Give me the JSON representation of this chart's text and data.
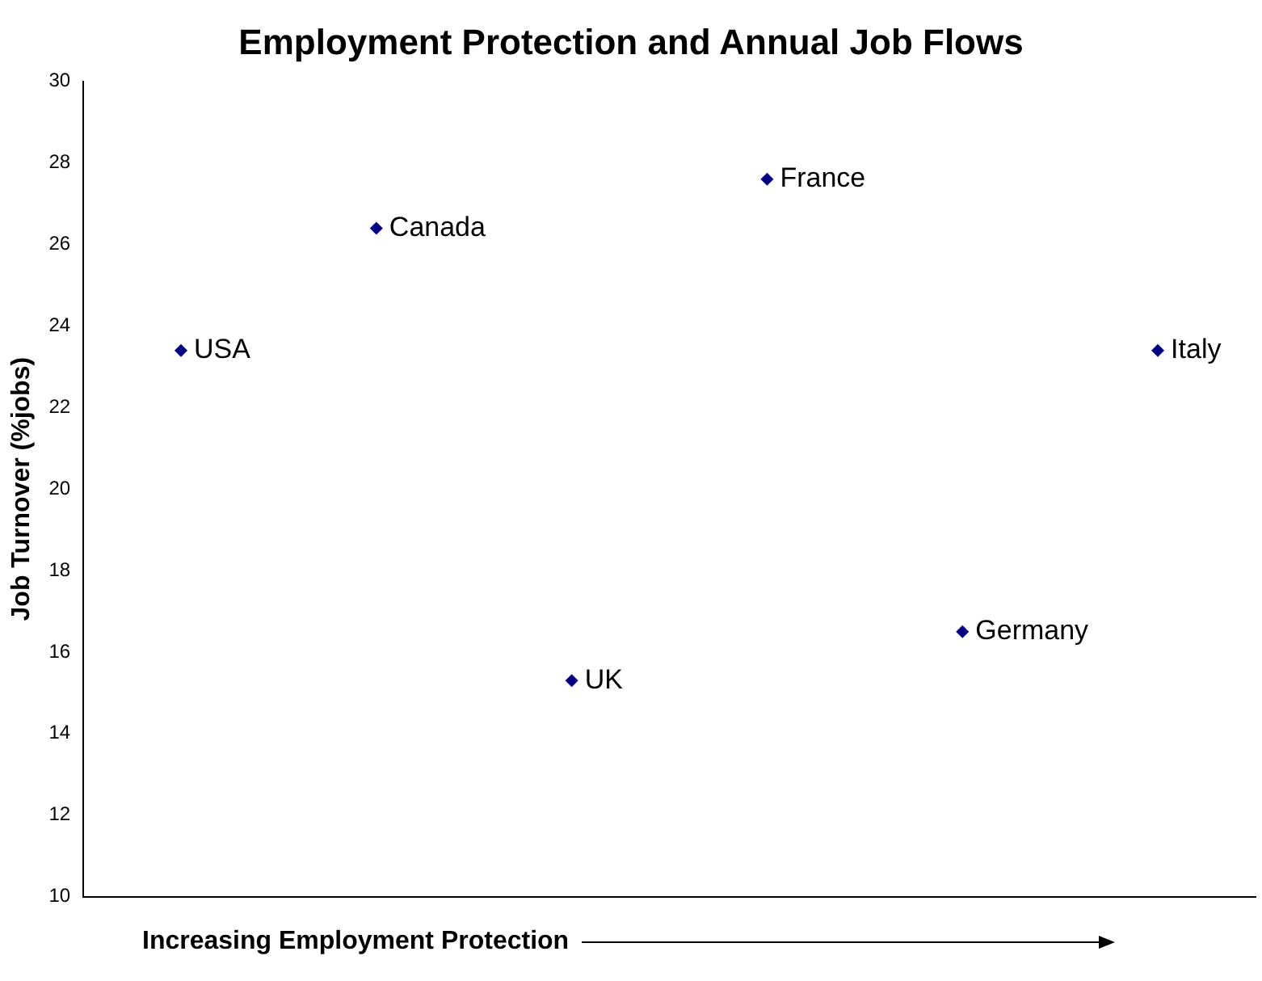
{
  "chart_data": {
    "type": "scatter",
    "title": "Employment Protection and Annual Job Flows",
    "xlabel": "Increasing Employment Protection",
    "ylabel": "Job Turnover (%jobs)",
    "categories": [
      "USA",
      "Canada",
      "UK",
      "France",
      "Germany",
      "Italy"
    ],
    "series": [
      {
        "color": "#000080",
        "values": [
          23.4,
          26.4,
          15.3,
          27.6,
          16.5,
          23.4
        ]
      }
    ],
    "ylim": [
      10,
      30
    ],
    "yticks": [
      10,
      12,
      14,
      16,
      18,
      20,
      22,
      24,
      26,
      28,
      30
    ],
    "grid": false,
    "legend": false,
    "marker": "diamond",
    "tick_labels": "y"
  }
}
